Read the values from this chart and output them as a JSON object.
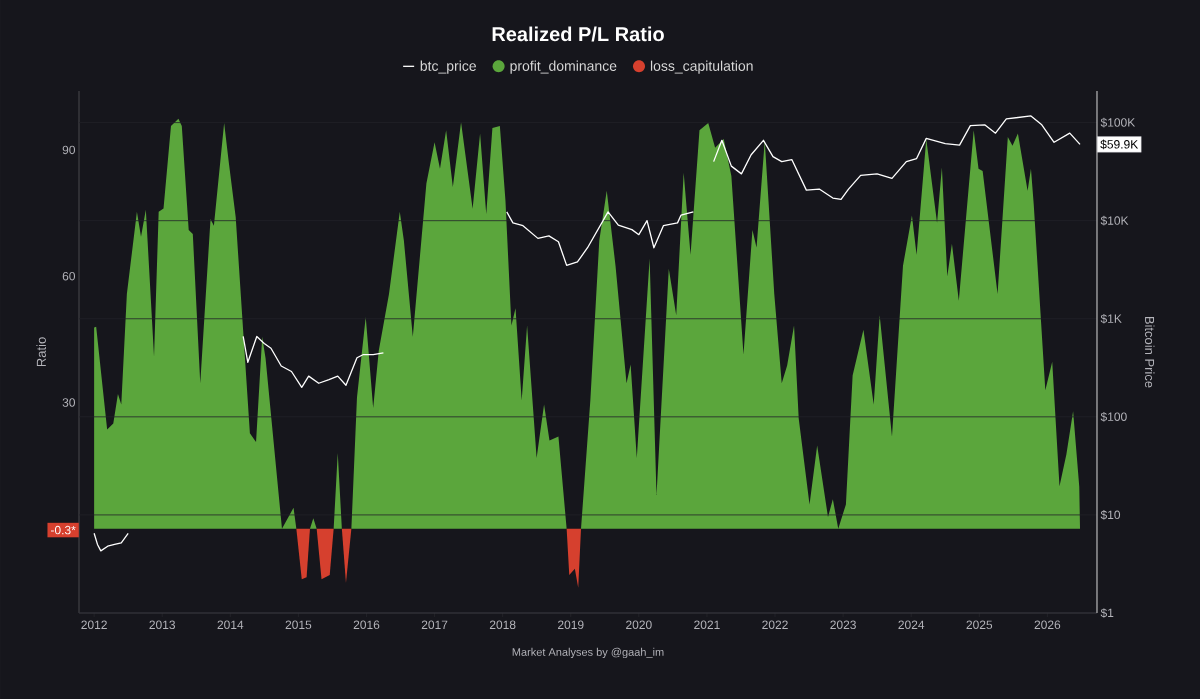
{
  "chart_data": {
    "type": "area",
    "title": "Realized P/L Ratio",
    "ylabel": "Ratio",
    "y2label": "Bitcoin Price",
    "legend": "top",
    "grid": "y",
    "log": "y2",
    "xlim": [
      "2011-10-12",
      "2026-09-24"
    ],
    "xticks": [
      "2012",
      "2013",
      "2014",
      "2015",
      "2016",
      "2017",
      "2018",
      "2019",
      "2020",
      "2021",
      "2022",
      "2023",
      "2024",
      "2025",
      "2026"
    ],
    "ylim": [
      -20,
      104
    ],
    "yticks": [
      {
        "value": -0.3,
        "label": "-0.3*"
      },
      30,
      60,
      90
    ],
    "y2lim": [
      1,
      210000
    ],
    "y2ticks": [
      {
        "value": 1,
        "label": "$1"
      },
      {
        "value": 10,
        "label": "$10"
      },
      {
        "value": 100,
        "label": "$100"
      },
      {
        "value": 1000,
        "label": "$1K"
      },
      {
        "value": 10000,
        "label": "$10K"
      },
      {
        "value": 100000,
        "label": "$100K"
      },
      {
        "value": 59900,
        "label": "$59.9K"
      }
    ],
    "annotations": [
      "Market Analyses by @gaah_im"
    ],
    "series": [
      {
        "name": "btc_price",
        "type": "line",
        "axis": "y2",
        "color": "#ffffff",
        "x": [
          "2012-01-01",
          "2012-01-19",
          "2012-02-06",
          "2012-03-14",
          "2012-04-20",
          "2012-05-26",
          "2012-07-02",
          null,
          "2014-03-11",
          "2014-04-05",
          "2014-05-23",
          "2014-07-02",
          "2014-08-07",
          "2014-10-01",
          "2014-11-25",
          "2015-01-19",
          "2015-02-25",
          "2015-04-20",
          "2015-06-14",
          "2015-07-31",
          "2015-09-13",
          "2015-11-11",
          "2015-12-13",
          "2016-02-06",
          "2016-04-01",
          null,
          "2018-01-23",
          "2018-02-25",
          "2018-04-20",
          "2018-07-09",
          "2018-09-06",
          "2018-10-27",
          "2018-12-10",
          "2019-02-06",
          "2019-04-01",
          "2019-07-20",
          "2019-09-13",
          "2019-11-25",
          "2020-01-01",
          "2020-02-14",
          "2020-03-22",
          "2020-05-12",
          "2020-07-27",
          "2020-08-15",
          "2020-10-20",
          null,
          "2021-02-06",
          "2021-03-22",
          "2021-05-12",
          "2021-07-05",
          "2021-08-26",
          "2021-10-31",
          "2021-12-21",
          "2022-02-06",
          "2022-04-01",
          "2022-06-18",
          "2022-08-26",
          "2022-11-07",
          "2022-12-21",
          "2023-01-30",
          "2023-04-05",
          "2023-07-02",
          "2023-09-20",
          "2023-12-06",
          "2024-01-30",
          "2024-03-22",
          "2024-07-02",
          "2024-09-17",
          "2024-11-14",
          "2025-01-30",
          "2025-03-29",
          "2025-05-26",
          "2025-10-05",
          "2025-12-02",
          "2026-02-06",
          "2026-05-01",
          "2026-06-25"
        ],
        "values": [
          6.5,
          5,
          4.3,
          4.8,
          5,
          5.2,
          6.5,
          null,
          660,
          360,
          660,
          560,
          500,
          330,
          290,
          200,
          260,
          220,
          240,
          260,
          210,
          400,
          430,
          430,
          450,
          null,
          12300,
          9500,
          8900,
          6600,
          7000,
          6100,
          3500,
          3800,
          5300,
          12300,
          9000,
          8100,
          7200,
          10000,
          5300,
          8900,
          9500,
          11400,
          12300,
          null,
          40000,
          66000,
          36000,
          30000,
          47000,
          66000,
          45000,
          40000,
          42000,
          20500,
          21000,
          17000,
          16500,
          21000,
          29000,
          30000,
          27000,
          40000,
          43000,
          69000,
          61000,
          59000,
          93000,
          95000,
          78000,
          109000,
          117000,
          95000,
          63000,
          78000,
          59900
        ]
      },
      {
        "name": "profit_dominance",
        "color": "#5ba63c",
        "x": [
          "2012-01-01",
          "2012-01-12",
          "2012-03-11",
          "2012-04-13",
          "2012-05-08",
          "2012-05-26",
          "2012-06-25",
          "2012-08-18",
          "2012-09-09",
          "2012-10-05",
          "2012-11-18",
          "2012-12-13",
          "2013-01-08",
          "2013-02-17",
          "2013-03-29",
          "2013-04-16",
          "2013-05-23",
          "2013-06-14",
          "2013-07-24",
          "2013-09-17",
          "2013-10-05",
          "2013-11-29",
          "2013-12-24",
          "2014-01-30",
          "2014-04-16",
          "2014-05-19",
          "2014-06-21",
          "2014-07-09",
          "2014-10-05",
          "2014-12-06",
          "2014-12-21",
          "2015-03-04",
          "2015-03-22",
          "2015-04-09",
          "2015-07-09",
          "2015-07-31",
          "2015-08-22",
          "2015-10-12",
          "2015-11-11",
          "2015-12-28",
          "2016-02-06",
          "2016-03-07",
          "2016-05-01",
          "2016-06-28",
          "2016-07-20",
          "2016-09-06",
          "2016-11-18",
          "2017-01-01",
          "2017-01-30",
          "2017-03-04",
          "2017-04-09",
          "2017-05-23",
          "2017-07-24",
          "2017-09-02",
          "2017-10-05",
          "2017-11-07",
          "2017-12-17",
          "2018-01-16",
          "2018-02-17",
          "2018-03-11",
          "2018-04-13",
          "2018-05-12",
          "2018-07-02",
          "2018-08-11",
          "2018-09-09",
          "2018-10-27",
          "2018-12-10",
          "2019-02-25",
          "2019-04-16",
          "2019-06-03",
          "2019-07-13",
          "2019-08-29",
          "2019-10-27",
          "2019-11-18",
          "2019-12-21",
          "2020-02-28",
          "2020-04-05",
          "2020-06-10",
          "2020-07-20",
          "2020-08-29",
          "2020-10-05",
          "2020-11-22",
          "2021-01-08",
          "2021-02-14",
          "2021-04-01",
          "2021-05-12",
          "2021-07-16",
          "2021-09-02",
          "2021-09-24",
          "2021-11-07",
          "2021-12-28",
          "2022-02-06",
          "2022-03-07",
          "2022-04-13",
          "2022-05-08",
          "2022-07-05",
          "2022-08-15",
          "2022-10-12",
          "2022-11-07",
          "2022-12-06",
          "2023-01-16",
          "2023-02-21",
          "2023-04-20",
          "2023-06-14",
          "2023-07-16",
          "2023-09-20",
          "2023-11-18",
          "2024-01-05",
          "2024-01-30",
          "2024-03-22",
          "2024-05-19",
          "2024-06-14",
          "2024-07-13",
          "2024-08-07",
          "2024-09-13",
          "2024-12-02",
          "2024-12-28",
          "2025-01-19",
          "2025-04-09",
          "2025-06-03",
          "2025-06-28",
          "2025-07-27",
          "2025-09-17",
          "2025-10-05",
          "2025-10-20",
          "2025-12-21",
          "2026-01-27",
          "2026-03-07",
          "2026-04-13",
          "2026-05-19",
          "2026-06-21",
          "2026-06-25"
        ],
        "values": [
          47.8,
          48,
          23.6,
          25,
          32,
          29.5,
          55.8,
          75.3,
          69.4,
          75.8,
          40.9,
          75.3,
          76.1,
          95.7,
          97.4,
          95.7,
          71,
          70,
          34.6,
          73.6,
          72,
          96.4,
          87,
          74,
          22.7,
          20.6,
          45.6,
          40.5,
          0,
          5,
          0,
          0,
          2.5,
          0,
          0,
          18,
          0,
          0,
          31.2,
          50.3,
          28.7,
          42.3,
          55.8,
          75.3,
          68.5,
          45.6,
          82,
          91.8,
          85.5,
          94.7,
          81.2,
          96.6,
          76,
          93.9,
          74.8,
          95.2,
          95.7,
          77.9,
          48.3,
          52.4,
          30.5,
          48.3,
          16.8,
          29.5,
          21,
          21.9,
          0,
          0,
          30.5,
          68.5,
          80.3,
          62.5,
          34.6,
          39,
          16.8,
          64.2,
          8,
          61.8,
          50.7,
          84.6,
          65.1,
          94.7,
          96.4,
          90.5,
          92.6,
          83.8,
          41.4,
          71,
          66.8,
          92.2,
          55.8,
          34.6,
          38.8,
          48.3,
          26.2,
          5.8,
          19.8,
          2.8,
          7,
          0,
          5.8,
          36.4,
          47.3,
          29.5,
          50.7,
          21.9,
          62.5,
          74.4,
          65.1,
          92.6,
          72.7,
          85.8,
          60,
          67.7,
          54.2,
          94.7,
          85.5,
          85,
          55.8,
          93.1,
          91,
          93.9,
          80.3,
          85.5,
          77,
          32.9,
          39.7,
          10.1,
          17.7,
          27.9,
          10,
          0
        ]
      },
      {
        "name": "loss_capitulation",
        "color": "#d6402e",
        "x": [
          "2014-12-21",
          "2015-01-19",
          "2015-02-14",
          "2015-03-04",
          null,
          "2015-04-09",
          "2015-05-05",
          "2015-06-18",
          "2015-07-09",
          null,
          "2015-08-22",
          "2015-09-13",
          "2015-10-12",
          null,
          "2018-12-10",
          "2018-12-24",
          "2019-01-23",
          "2019-02-10",
          "2019-02-25"
        ],
        "values": [
          0,
          -12,
          -11.5,
          0,
          null,
          0,
          -12,
          -11,
          0,
          null,
          0,
          -12.8,
          0,
          null,
          0,
          -11,
          -9.5,
          -14,
          0
        ]
      }
    ]
  }
}
